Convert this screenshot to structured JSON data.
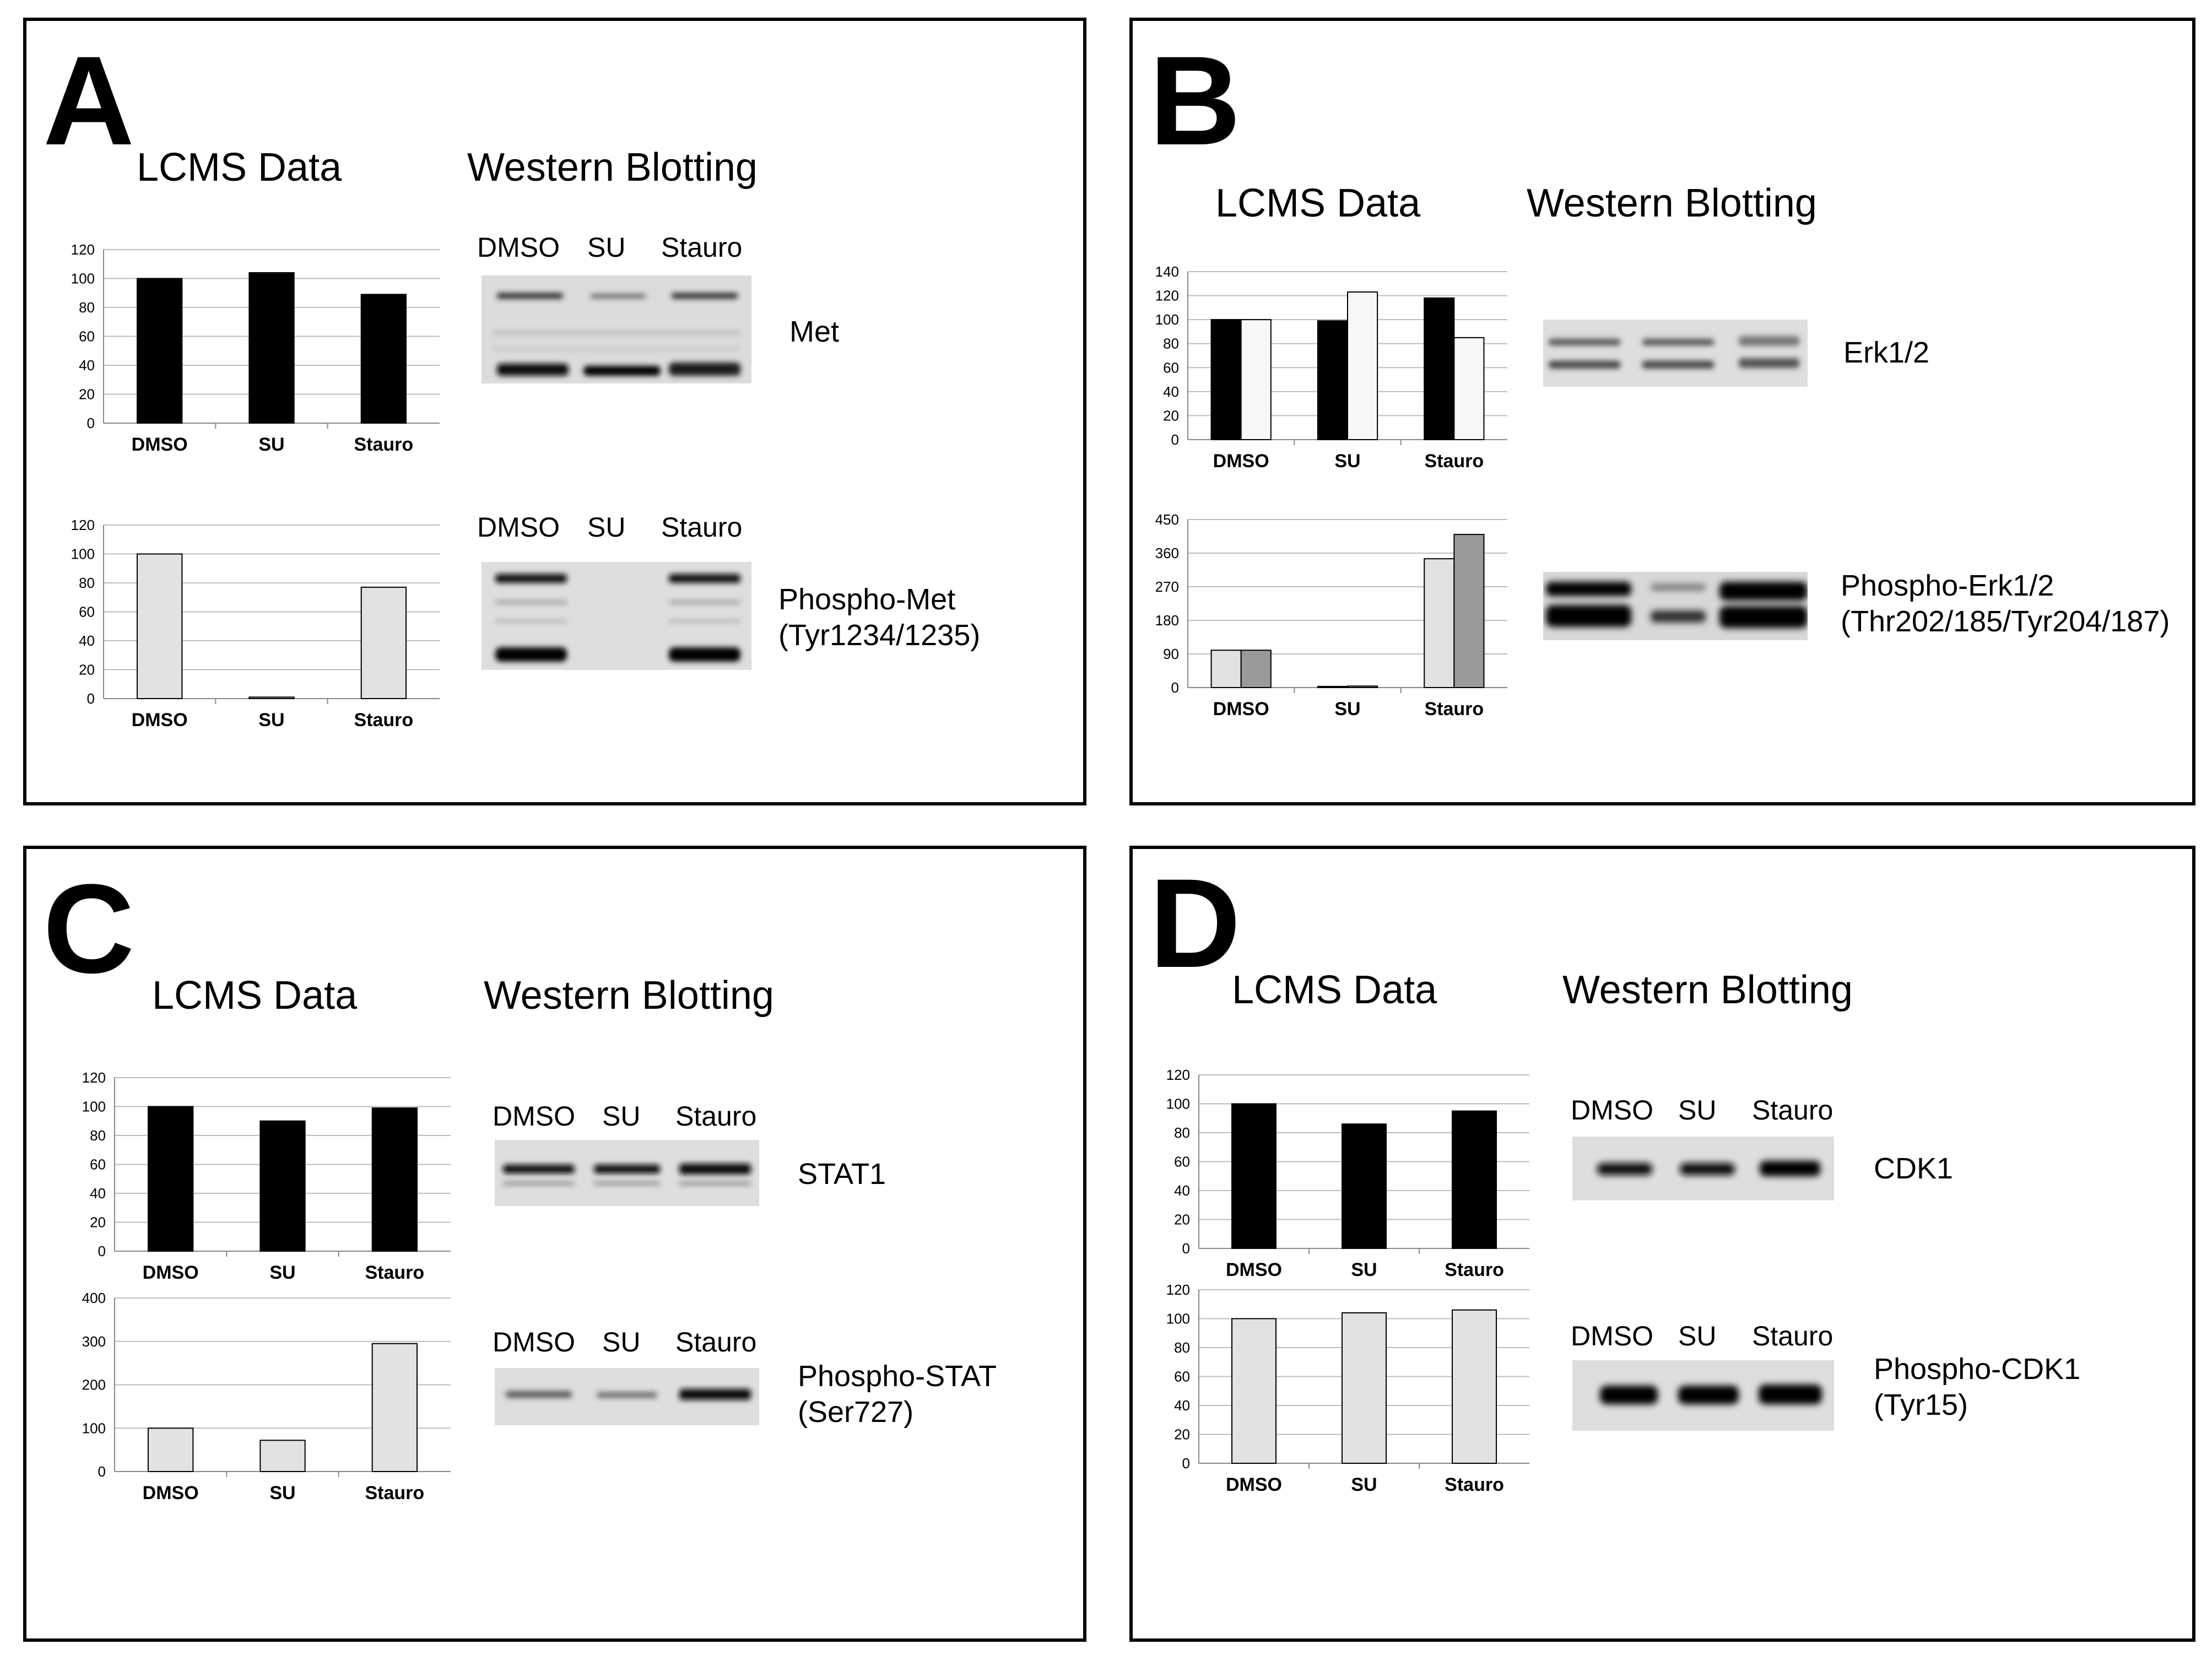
{
  "panels": {
    "A": {
      "letter": "A",
      "lcms_title": "LCMS Data",
      "western_title": "Western Blotting",
      "blots": [
        {
          "lanes": [
            "DMSO",
            "SU",
            "Stauro"
          ],
          "protein": "Met",
          "protein_line2": ""
        },
        {
          "lanes": [
            "DMSO",
            "SU",
            "Stauro"
          ],
          "protein": "Phospho-Met",
          "protein_line2": "(Tyr1234/1235)"
        }
      ]
    },
    "B": {
      "letter": "B",
      "lcms_title": "LCMS Data",
      "western_title": "Western Blotting",
      "blots": [
        {
          "protein": "Erk1/2",
          "protein_line2": ""
        },
        {
          "protein": "Phospho-Erk1/2",
          "protein_line2": "(Thr202/185/Tyr204/187)"
        }
      ]
    },
    "C": {
      "letter": "C",
      "lcms_title": "LCMS Data",
      "western_title": "Western Blotting",
      "blots": [
        {
          "lanes": [
            "DMSO",
            "SU",
            "Stauro"
          ],
          "protein": "STAT1",
          "protein_line2": ""
        },
        {
          "lanes": [
            "DMSO",
            "SU",
            "Stauro"
          ],
          "protein": "Phospho-STAT",
          "protein_line2": "(Ser727)"
        }
      ]
    },
    "D": {
      "letter": "D",
      "lcms_title": "LCMS Data",
      "western_title": "Western Blotting",
      "blots": [
        {
          "lanes": [
            "DMSO",
            "SU",
            "Stauro"
          ],
          "protein": "CDK1",
          "protein_line2": ""
        },
        {
          "lanes": [
            "DMSO",
            "SU",
            "Stauro"
          ],
          "protein": "Phospho-CDK1",
          "protein_line2": "(Tyr15)"
        }
      ]
    }
  },
  "colors": {
    "black_bar": "#000000",
    "light_bar": "#e2e2e2",
    "white_bar": "#f7f7f7",
    "dark_gray_bar": "#9a9a9a",
    "grid": "#bdbdbd"
  },
  "chart_data": [
    {
      "id": "A1",
      "type": "bar",
      "categories": [
        "DMSO",
        "SU",
        "Stauro"
      ],
      "series": [
        {
          "name": "Met",
          "values": [
            100,
            104,
            89
          ],
          "color": "#000000"
        }
      ],
      "yticks": [
        0,
        20,
        40,
        60,
        80,
        100,
        120
      ],
      "ylim": [
        0,
        120
      ],
      "title": "",
      "xlabel": "",
      "ylabel": ""
    },
    {
      "id": "A2",
      "type": "bar",
      "categories": [
        "DMSO",
        "SU",
        "Stauro"
      ],
      "series": [
        {
          "name": "Phospho-Met",
          "values": [
            100,
            1,
            77
          ],
          "color": "#e2e2e2"
        }
      ],
      "yticks": [
        0,
        20,
        40,
        60,
        80,
        100,
        120
      ],
      "ylim": [
        0,
        120
      ],
      "title": "",
      "xlabel": "",
      "ylabel": ""
    },
    {
      "id": "B1",
      "type": "bar",
      "categories": [
        "DMSO",
        "SU",
        "Stauro"
      ],
      "series": [
        {
          "name": "Erk1",
          "values": [
            100,
            99,
            118
          ],
          "color": "#000000"
        },
        {
          "name": "Erk2",
          "values": [
            100,
            123,
            85
          ],
          "color": "#f7f7f7"
        }
      ],
      "yticks": [
        0,
        20,
        40,
        60,
        80,
        100,
        120,
        140
      ],
      "ylim": [
        0,
        140
      ],
      "title": "",
      "xlabel": "",
      "ylabel": ""
    },
    {
      "id": "B2",
      "type": "bar",
      "categories": [
        "DMSO",
        "SU",
        "Stauro"
      ],
      "series": [
        {
          "name": "Phospho-Erk1",
          "values": [
            100,
            3,
            345
          ],
          "color": "#e2e2e2"
        },
        {
          "name": "Phospho-Erk2",
          "values": [
            100,
            4,
            410
          ],
          "color": "#9a9a9a"
        }
      ],
      "yticks": [
        0,
        90,
        180,
        270,
        360,
        450
      ],
      "ylim": [
        0,
        450
      ],
      "title": "",
      "xlabel": "",
      "ylabel": ""
    },
    {
      "id": "C1",
      "type": "bar",
      "categories": [
        "DMSO",
        "SU",
        "Stauro"
      ],
      "series": [
        {
          "name": "STAT1",
          "values": [
            100,
            90,
            99
          ],
          "color": "#000000"
        }
      ],
      "yticks": [
        0,
        20,
        40,
        60,
        80,
        100,
        120
      ],
      "ylim": [
        0,
        120
      ],
      "title": "",
      "xlabel": "",
      "ylabel": ""
    },
    {
      "id": "C2",
      "type": "bar",
      "categories": [
        "DMSO",
        "SU",
        "Stauro"
      ],
      "series": [
        {
          "name": "Phospho-STAT1",
          "values": [
            100,
            72,
            295
          ],
          "color": "#e2e2e2"
        }
      ],
      "yticks": [
        0,
        100,
        200,
        300,
        400
      ],
      "ylim": [
        0,
        400
      ],
      "title": "",
      "xlabel": "",
      "ylabel": ""
    },
    {
      "id": "D1",
      "type": "bar",
      "categories": [
        "DMSO",
        "SU",
        "Stauro"
      ],
      "series": [
        {
          "name": "CDK1",
          "values": [
            100,
            86,
            95
          ],
          "color": "#000000"
        }
      ],
      "yticks": [
        0,
        20,
        40,
        60,
        80,
        100,
        120
      ],
      "ylim": [
        0,
        120
      ],
      "title": "",
      "xlabel": "",
      "ylabel": ""
    },
    {
      "id": "D2",
      "type": "bar",
      "categories": [
        "DMSO",
        "SU",
        "Stauro"
      ],
      "series": [
        {
          "name": "Phospho-CDK1",
          "values": [
            100,
            104,
            106
          ],
          "color": "#e2e2e2"
        }
      ],
      "yticks": [
        0,
        20,
        40,
        60,
        80,
        100,
        120
      ],
      "ylim": [
        0,
        120
      ],
      "title": "",
      "xlabel": "",
      "ylabel": ""
    }
  ]
}
